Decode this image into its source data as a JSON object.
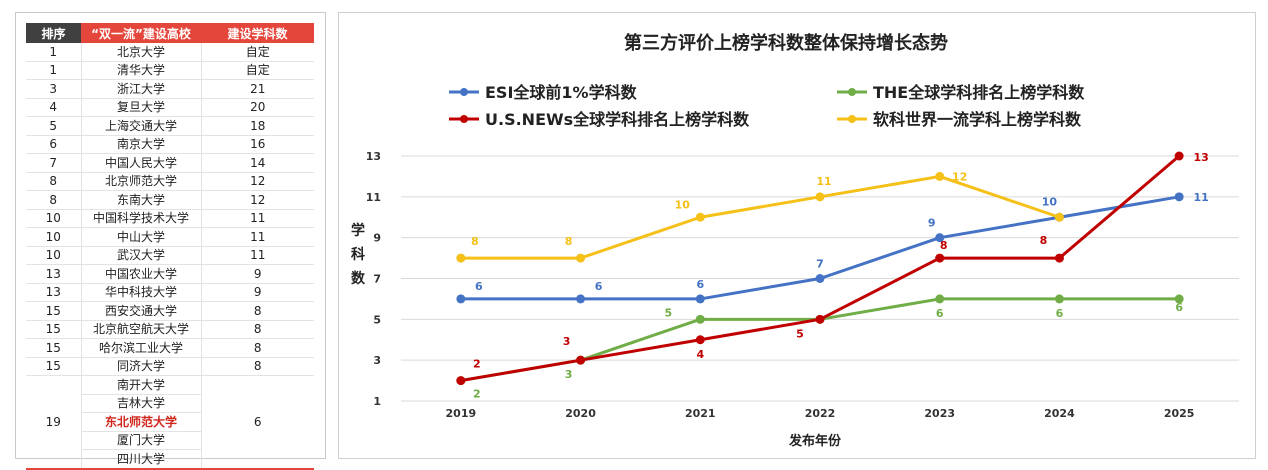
{
  "table": {
    "headers": [
      "排序",
      "“双一流”建设高校",
      "建设学科数"
    ],
    "rows": [
      {
        "rank": "1",
        "univ": "北京大学",
        "count": "自定"
      },
      {
        "rank": "1",
        "univ": "清华大学",
        "count": "自定"
      },
      {
        "rank": "3",
        "univ": "浙江大学",
        "count": "21"
      },
      {
        "rank": "4",
        "univ": "复旦大学",
        "count": "20"
      },
      {
        "rank": "5",
        "univ": "上海交通大学",
        "count": "18"
      },
      {
        "rank": "6",
        "univ": "南京大学",
        "count": "16"
      },
      {
        "rank": "7",
        "univ": "中国人民大学",
        "count": "14"
      },
      {
        "rank": "8",
        "univ": "北京师范大学",
        "count": "12"
      },
      {
        "rank": "8",
        "univ": "东南大学",
        "count": "12"
      },
      {
        "rank": "10",
        "univ": "中国科学技术大学",
        "count": "11"
      },
      {
        "rank": "10",
        "univ": "中山大学",
        "count": "11"
      },
      {
        "rank": "10",
        "univ": "武汉大学",
        "count": "11"
      },
      {
        "rank": "13",
        "univ": "中国农业大学",
        "count": "9"
      },
      {
        "rank": "13",
        "univ": "华中科技大学",
        "count": "9"
      },
      {
        "rank": "15",
        "univ": "西安交通大学",
        "count": "8"
      },
      {
        "rank": "15",
        "univ": "北京航空航天大学",
        "count": "8"
      },
      {
        "rank": "15",
        "univ": "哈尔滨工业大学",
        "count": "8"
      },
      {
        "rank": "15",
        "univ": "同济大学",
        "count": "8"
      }
    ],
    "group": {
      "rank": "19",
      "count": "6",
      "univs": [
        "南开大学",
        "吉林大学",
        "东北师范大学",
        "厦门大学",
        "四川大学"
      ],
      "highlight": "东北师范大学"
    }
  },
  "chart_data": {
    "type": "line",
    "title": "第三方评价上榜学科数整体保持增长态势",
    "xlabel": "发布年份",
    "ylabel": "学科数",
    "x": [
      "2019",
      "2020",
      "2021",
      "2022",
      "2023",
      "2024",
      "2025"
    ],
    "ylim": [
      1,
      13
    ],
    "yticks": [
      1,
      3,
      5,
      7,
      9,
      11,
      13
    ],
    "grid": true,
    "series": [
      {
        "name": "ESI全球前1%学科数",
        "color": "#4472c4",
        "values": [
          6,
          6,
          6,
          7,
          9,
          10,
          11
        ],
        "labels": [
          "6",
          "6",
          "6",
          "7",
          "9",
          "10",
          "11"
        ]
      },
      {
        "name": "THE全球学科排名上榜学科数",
        "color": "#70ad47",
        "values": [
          2,
          3,
          5,
          5,
          6,
          6,
          6
        ],
        "labels": [
          "2",
          "3",
          "5",
          "",
          "6",
          "6",
          "6"
        ]
      },
      {
        "name": "U.S.NEWs全球学科排名上榜学科数",
        "color": "#c00000",
        "values": [
          2,
          3,
          4,
          5,
          8,
          8,
          13
        ],
        "labels": [
          "2",
          "3",
          "4",
          "5",
          "8",
          "8",
          "13"
        ]
      },
      {
        "name": "软科世界一流学科上榜学科数",
        "color": "#f5c018",
        "values": [
          8,
          8,
          10,
          11,
          12,
          10,
          null
        ],
        "labels": [
          "8",
          "8",
          "10",
          "11",
          "12",
          "",
          ""
        ]
      }
    ]
  }
}
